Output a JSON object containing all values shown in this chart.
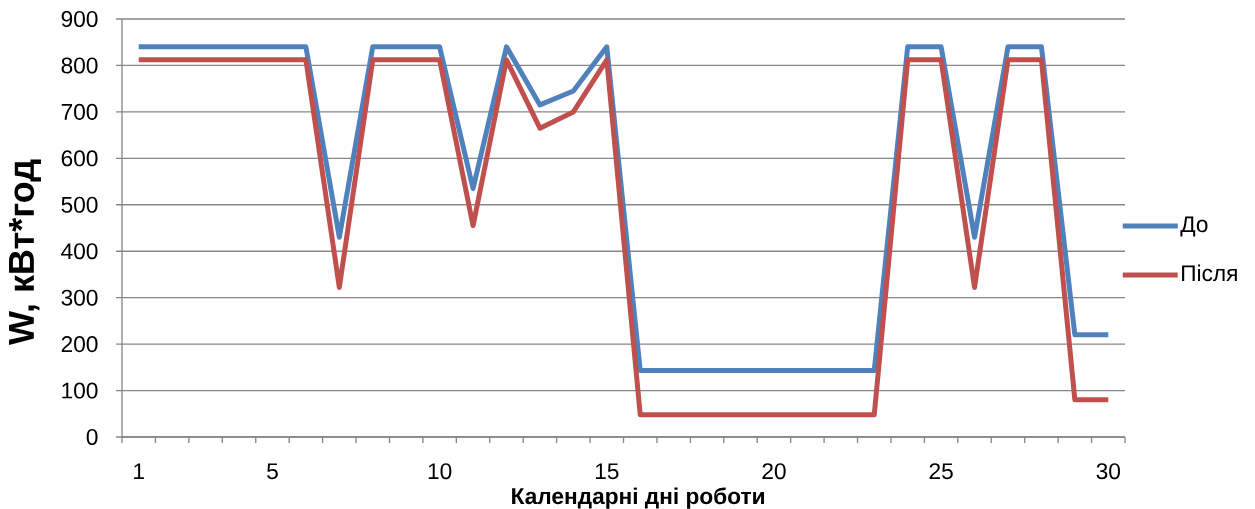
{
  "chart_data": {
    "type": "line",
    "xlabel": "Календарні дні роботи",
    "ylabel": "W, кВт*год",
    "categories": [
      "1",
      null,
      null,
      null,
      "5",
      null,
      null,
      null,
      null,
      "10",
      null,
      null,
      null,
      null,
      "15",
      null,
      null,
      null,
      null,
      "20",
      null,
      null,
      null,
      null,
      "25",
      null,
      null,
      null,
      null,
      "30"
    ],
    "series": [
      {
        "name": "До",
        "color": "#4f81bd",
        "values": [
          840,
          840,
          840,
          840,
          840,
          840,
          430,
          840,
          840,
          840,
          535,
          840,
          715,
          745,
          840,
          143,
          143,
          143,
          143,
          143,
          143,
          143,
          143,
          840,
          840,
          430,
          840,
          840,
          220,
          220
        ]
      },
      {
        "name": "Після",
        "color": "#c0504d",
        "values": [
          812,
          812,
          812,
          812,
          812,
          812,
          322,
          812,
          812,
          812,
          455,
          812,
          665,
          700,
          812,
          48,
          48,
          48,
          48,
          48,
          48,
          48,
          48,
          812,
          812,
          322,
          812,
          812,
          80,
          80
        ]
      }
    ],
    "ylim": [
      0,
      900
    ],
    "yticks": [
      0,
      100,
      200,
      300,
      400,
      500,
      600,
      700,
      800,
      900
    ],
    "grid": "y",
    "legend": "right",
    "line_style": "solid"
  }
}
